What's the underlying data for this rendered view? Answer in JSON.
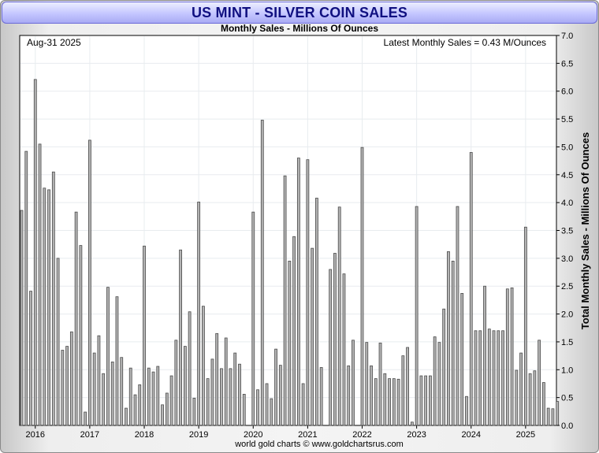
{
  "header": {
    "title": "US MINT - SILVER COIN SALES",
    "subtitle": "Monthly Sales - Millions Of Ounces"
  },
  "annotations": {
    "date": "Aug-31  2025",
    "latest": "Latest Monthly Sales = 0.43 M/Ounces"
  },
  "footer": {
    "credit": "world gold charts © www.goldchartsrus.com"
  },
  "colors": {
    "bar_fill": "#b4b4b4",
    "bar_stroke": "#4a4a4a",
    "grid": "#e8ecef",
    "title_text": "#101080"
  },
  "chart_data": {
    "type": "bar",
    "title": "US MINT - SILVER COIN SALES",
    "subtitle": "Monthly Sales - Millions Of Ounces",
    "ylabel": "Total Monthly Sales - Millions Of Ounces",
    "ylim": [
      0,
      7.0
    ],
    "y_ticks": [
      "0.0",
      "0.5",
      "1.0",
      "1.5",
      "2.0",
      "2.5",
      "3.0",
      "3.5",
      "4.0",
      "4.5",
      "5.0",
      "5.5",
      "6.0",
      "6.5",
      "7.0"
    ],
    "y_axis_position": "right",
    "grid": true,
    "x_start": "2015-10",
    "x_ticks": [
      {
        "label": "2016",
        "month": "2016-01"
      },
      {
        "label": "2017",
        "month": "2017-01"
      },
      {
        "label": "2018",
        "month": "2018-01"
      },
      {
        "label": "2019",
        "month": "2019-01"
      },
      {
        "label": "2020",
        "month": "2020-01"
      },
      {
        "label": "2021",
        "month": "2021-01"
      },
      {
        "label": "2022",
        "month": "2022-01"
      },
      {
        "label": "2023",
        "month": "2023-01"
      },
      {
        "label": "2024",
        "month": "2024-01"
      },
      {
        "label": "2025",
        "month": "2025-01"
      }
    ],
    "values": [
      3.86,
      4.92,
      2.41,
      6.21,
      5.05,
      4.26,
      4.23,
      4.55,
      3.0,
      1.35,
      1.42,
      1.68,
      3.83,
      3.23,
      0.24,
      5.12,
      1.3,
      1.61,
      0.93,
      2.48,
      1.14,
      2.31,
      1.22,
      0.31,
      1.03,
      0.55,
      0.73,
      3.22,
      1.03,
      0.96,
      1.06,
      0.37,
      0.58,
      0.89,
      1.53,
      3.15,
      1.42,
      2.04,
      0.49,
      4.01,
      2.14,
      0.84,
      1.19,
      1.65,
      1.02,
      1.57,
      1.02,
      1.3,
      1.1,
      0.56,
      0.0,
      3.83,
      0.64,
      5.48,
      0.75,
      0.48,
      1.37,
      1.08,
      4.48,
      2.95,
      3.39,
      4.8,
      0.75,
      4.77,
      3.18,
      4.08,
      1.04,
      0.0,
      2.8,
      3.09,
      3.92,
      2.72,
      1.07,
      1.53,
      0.0,
      4.99,
      1.49,
      1.07,
      0.84,
      1.48,
      0.93,
      0.84,
      0.84,
      0.83,
      1.25,
      1.4,
      0.06,
      3.93,
      0.89,
      0.89,
      0.89,
      1.59,
      1.49,
      2.09,
      3.12,
      2.95,
      3.93,
      2.37,
      0.52,
      4.9,
      1.7,
      1.7,
      2.5,
      1.73,
      1.7,
      1.7,
      1.7,
      2.45,
      2.47,
      0.99,
      1.3,
      3.56,
      0.93,
      0.98,
      1.53,
      0.77,
      0.31,
      0.3,
      0.43
    ]
  }
}
